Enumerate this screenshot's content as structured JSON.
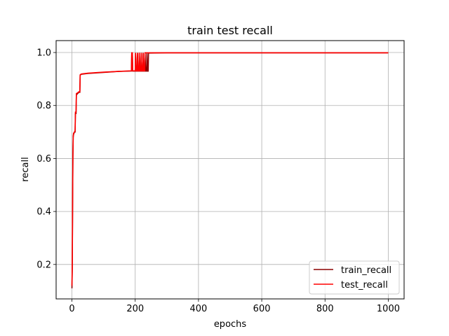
{
  "chart_data": {
    "type": "line",
    "title": "train test recall",
    "xlabel": "epochs",
    "ylabel": "recall",
    "xlim": [
      -50,
      1050
    ],
    "ylim": [
      0.07,
      1.045
    ],
    "xticks": [
      0,
      200,
      400,
      600,
      800,
      1000
    ],
    "yticks": [
      0.2,
      0.4,
      0.6,
      0.8,
      1.0
    ],
    "xtick_labels": [
      "0",
      "200",
      "400",
      "600",
      "800",
      "1000"
    ],
    "ytick_labels": [
      "0.2",
      "0.4",
      "0.6",
      "0.8",
      "1.0"
    ],
    "grid": true,
    "legend_position": "lower-right",
    "series": [
      {
        "name": "train_recall",
        "color": "#8b0000",
        "points": [
          [
            0,
            0.11
          ],
          [
            1,
            0.18
          ],
          [
            2,
            0.4
          ],
          [
            3,
            0.6
          ],
          [
            4,
            0.68
          ],
          [
            5,
            0.69
          ],
          [
            8,
            0.7
          ],
          [
            10,
            0.7
          ],
          [
            11,
            0.77
          ],
          [
            13,
            0.77
          ],
          [
            14,
            0.84
          ],
          [
            18,
            0.845
          ],
          [
            22,
            0.85
          ],
          [
            25,
            0.85
          ],
          [
            26,
            0.915
          ],
          [
            30,
            0.918
          ],
          [
            50,
            0.921
          ],
          [
            100,
            0.925
          ],
          [
            150,
            0.929
          ],
          [
            188,
            0.93
          ],
          [
            189,
            0.998
          ],
          [
            191,
            0.998
          ],
          [
            192,
            0.93
          ],
          [
            200,
            0.93
          ],
          [
            201,
            0.998
          ],
          [
            203,
            0.93
          ],
          [
            206,
            0.93
          ],
          [
            207,
            0.998
          ],
          [
            209,
            0.93
          ],
          [
            212,
            0.93
          ],
          [
            213,
            0.998
          ],
          [
            215,
            0.93
          ],
          [
            218,
            0.93
          ],
          [
            219,
            0.998
          ],
          [
            221,
            0.93
          ],
          [
            224,
            0.93
          ],
          [
            225,
            0.998
          ],
          [
            227,
            0.93
          ],
          [
            230,
            0.93
          ],
          [
            231,
            0.998
          ],
          [
            233,
            0.93
          ],
          [
            236,
            0.93
          ],
          [
            237,
            0.998
          ],
          [
            239,
            0.93
          ],
          [
            241,
            0.93
          ],
          [
            242,
            0.998
          ],
          [
            300,
            0.999
          ],
          [
            500,
            0.999
          ],
          [
            700,
            0.999
          ],
          [
            1000,
            0.999
          ]
        ]
      },
      {
        "name": "test_recall",
        "color": "#ff0000",
        "points": [
          [
            0,
            0.12
          ],
          [
            1,
            0.2
          ],
          [
            2,
            0.42
          ],
          [
            3,
            0.61
          ],
          [
            4,
            0.685
          ],
          [
            5,
            0.695
          ],
          [
            8,
            0.7
          ],
          [
            10,
            0.705
          ],
          [
            11,
            0.775
          ],
          [
            13,
            0.775
          ],
          [
            14,
            0.845
          ],
          [
            18,
            0.848
          ],
          [
            22,
            0.852
          ],
          [
            25,
            0.852
          ],
          [
            26,
            0.916
          ],
          [
            30,
            0.919
          ],
          [
            50,
            0.922
          ],
          [
            100,
            0.926
          ],
          [
            150,
            0.929
          ],
          [
            188,
            0.931
          ],
          [
            189,
            0.999
          ],
          [
            191,
            0.999
          ],
          [
            192,
            0.931
          ],
          [
            200,
            0.931
          ],
          [
            201,
            0.999
          ],
          [
            203,
            0.931
          ],
          [
            206,
            0.931
          ],
          [
            207,
            0.999
          ],
          [
            209,
            0.931
          ],
          [
            212,
            0.931
          ],
          [
            213,
            0.999
          ],
          [
            215,
            0.931
          ],
          [
            218,
            0.931
          ],
          [
            219,
            0.999
          ],
          [
            221,
            0.931
          ],
          [
            224,
            0.931
          ],
          [
            225,
            0.999
          ],
          [
            227,
            0.931
          ],
          [
            230,
            0.931
          ],
          [
            231,
            0.999
          ],
          [
            233,
            0.999
          ],
          [
            240,
            0.999
          ],
          [
            300,
            0.999
          ],
          [
            500,
            0.999
          ],
          [
            700,
            0.999
          ],
          [
            1000,
            0.999
          ]
        ]
      }
    ]
  }
}
